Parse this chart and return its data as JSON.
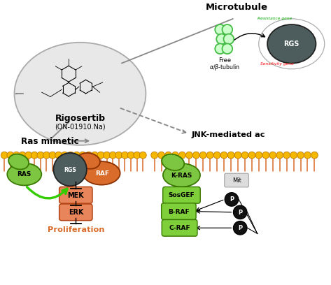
{
  "bg_color": "#ffffff",
  "rigosertib_label": "Rigosertib",
  "rigosertib_sub": "(ON-01910.Na)",
  "microtubule_title": "Microtubule",
  "jnk_title": "JNK-mediated ac",
  "ras_mimetic_title": "Ras mimetic",
  "rgs_dark": "#4d5d5d",
  "green_blob": "#7dc642",
  "green_edge": "#3a7a00",
  "orange_blob": "#d96c2a",
  "orange_edge": "#8B3000",
  "salmon_box": "#e8855a",
  "salmon_edge": "#b04010",
  "green_box": "#7ecf3a",
  "green_box_edge": "#3a7a00",
  "gold": "#f5b800",
  "gold_edge": "#c07800",
  "gray_line": "#888888",
  "tubulin_green": "#44bb44"
}
